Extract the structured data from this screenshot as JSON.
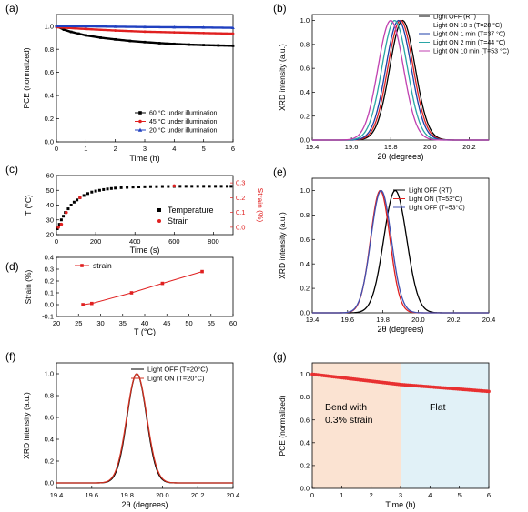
{
  "chart_data": [
    {
      "id": "a",
      "type": "line",
      "panel_label": "(a)",
      "xlabel": "Time (h)",
      "ylabel": "PCE (normalized)",
      "xlim": [
        0,
        6
      ],
      "ylim": [
        0,
        1.1
      ],
      "xticks": [
        "0",
        "1",
        "2",
        "3",
        "4",
        "5",
        "6"
      ],
      "xtick_values": [
        0,
        1,
        2,
        3,
        4,
        5,
        6
      ],
      "yticks": [
        "0.0",
        "0.2",
        "0.4",
        "0.6",
        "0.8",
        "1.0"
      ],
      "ytick_values": [
        0,
        0.2,
        0.4,
        0.6,
        0.8,
        1.0
      ],
      "legend_position": "bottom-right",
      "series": [
        {
          "name": "60 °C under illumination",
          "color": "#000000",
          "marker": "square",
          "x": [
            0,
            0.25,
            0.5,
            0.75,
            1,
            1.5,
            2,
            2.5,
            3,
            3.5,
            4,
            4.5,
            5,
            5.5,
            6
          ],
          "y": [
            1.0,
            0.97,
            0.95,
            0.935,
            0.92,
            0.9,
            0.885,
            0.872,
            0.862,
            0.853,
            0.846,
            0.84,
            0.836,
            0.833,
            0.83
          ]
        },
        {
          "name": "45 °C under illumination",
          "color": "#e02020",
          "marker": "circle",
          "x": [
            0,
            1,
            2,
            3,
            4,
            5,
            6
          ],
          "y": [
            0.99,
            0.975,
            0.962,
            0.952,
            0.946,
            0.94,
            0.935
          ]
        },
        {
          "name": "20 °C under illumination",
          "color": "#2040c0",
          "marker": "triangle",
          "x": [
            0,
            1,
            2,
            3,
            4,
            5,
            6
          ],
          "y": [
            1.0,
            0.998,
            0.995,
            0.992,
            0.99,
            0.988,
            0.985
          ]
        }
      ]
    },
    {
      "id": "b",
      "type": "line",
      "panel_label": "(b)",
      "xlabel": "2θ (degrees)",
      "ylabel": "XRD intensity (a.u.)",
      "xlim": [
        19.4,
        20.3
      ],
      "ylim": [
        0,
        1.05
      ],
      "xticks": [
        "19.4",
        "19.6",
        "19.8",
        "20.0",
        "20.2"
      ],
      "xtick_values": [
        19.4,
        19.6,
        19.8,
        20.0,
        20.2
      ],
      "yticks": [
        "0.0",
        "0.2",
        "0.4",
        "0.6",
        "0.8",
        "1.0"
      ],
      "ytick_values": [
        0,
        0.2,
        0.4,
        0.6,
        0.8,
        1.0
      ],
      "legend_position": "top-right",
      "series": [
        {
          "name": "Light OFF (RT)",
          "color": "#000000",
          "center": 19.86,
          "width": 0.065
        },
        {
          "name": "Light ON 10 s (T=28 °C)",
          "color": "#e02020",
          "center": 19.85,
          "width": 0.065
        },
        {
          "name": "Light ON 1 min (T=37 °C)",
          "color": "#1c3fa8",
          "center": 19.84,
          "width": 0.065
        },
        {
          "name": "Light ON 2 min (T=44 °C)",
          "color": "#2aa6a6",
          "center": 19.82,
          "width": 0.065
        },
        {
          "name": "Light ON 10 min (T=53 °C)",
          "color": "#c040b0",
          "center": 19.8,
          "width": 0.065
        }
      ]
    },
    {
      "id": "c",
      "type": "scatter",
      "panel_label": "(c)",
      "xlabel": "Time (s)",
      "ylabel": "T (°C)",
      "ylabel_right": "Strain (%)",
      "xlim": [
        0,
        900
      ],
      "ylim": [
        20,
        60
      ],
      "ylim_right": [
        -0.05,
        0.35
      ],
      "xticks": [
        "0",
        "200",
        "400",
        "600",
        "800"
      ],
      "xtick_values": [
        0,
        200,
        400,
        600,
        800
      ],
      "yticks": [
        "20",
        "30",
        "40",
        "50",
        "60"
      ],
      "ytick_values": [
        20,
        30,
        40,
        50,
        60
      ],
      "yticks_right": [
        "0.0",
        "0.1",
        "0.2",
        "0.3"
      ],
      "ytick_values_right": [
        0,
        0.1,
        0.2,
        0.3
      ],
      "legend_position": "right",
      "series": [
        {
          "name": "Temperature",
          "color": "#000000",
          "marker": "square",
          "x": [
            5,
            15,
            25,
            35,
            45,
            60,
            75,
            90,
            105,
            120,
            140,
            160,
            180,
            200,
            220,
            240,
            260,
            280,
            300,
            330,
            360,
            390,
            420,
            450,
            480,
            510,
            540,
            570,
            600,
            630,
            660,
            690,
            720,
            750,
            780,
            810,
            840,
            870,
            890
          ],
          "y": [
            24,
            27,
            30,
            32.5,
            35,
            37.5,
            40,
            42,
            43.5,
            45,
            46.5,
            47.8,
            48.8,
            49.5,
            50,
            50.5,
            50.9,
            51.2,
            51.5,
            51.8,
            52,
            52.2,
            52.3,
            52.4,
            52.5,
            52.5,
            52.6,
            52.6,
            52.6,
            52.7,
            52.7,
            52.7,
            52.7,
            52.7,
            52.7,
            52.7,
            52.7,
            52.7,
            52.7
          ]
        },
        {
          "name": "Strain",
          "color": "#e02020",
          "marker": "circle",
          "x": [
            10,
            25,
            50,
            120,
            600
          ],
          "y": [
            0,
            0.02,
            0.1,
            0.2,
            0.28
          ]
        }
      ]
    },
    {
      "id": "d",
      "type": "line",
      "panel_label": "(d)",
      "xlabel": "T (°C)",
      "ylabel": "Strain (%)",
      "xlim": [
        20,
        60
      ],
      "ylim": [
        -0.1,
        0.4
      ],
      "xticks": [
        "20",
        "25",
        "30",
        "35",
        "40",
        "45",
        "50",
        "55",
        "60"
      ],
      "xtick_values": [
        20,
        25,
        30,
        35,
        40,
        45,
        50,
        55,
        60
      ],
      "yticks": [
        "-0.1",
        "0.0",
        "0.1",
        "0.2",
        "0.3",
        "0.4"
      ],
      "ytick_values": [
        -0.1,
        0,
        0.1,
        0.2,
        0.3,
        0.4
      ],
      "legend_position": "top-left",
      "series": [
        {
          "name": "strain",
          "color": "#e02020",
          "marker": "square",
          "x": [
            26,
            28,
            37,
            44,
            53
          ],
          "y": [
            0,
            0.01,
            0.1,
            0.18,
            0.28
          ]
        }
      ]
    },
    {
      "id": "e",
      "type": "line",
      "panel_label": "(e)",
      "xlabel": "2θ (degrees)",
      "ylabel": "XRD intensity (a.u.)",
      "xlim": [
        19.4,
        20.4
      ],
      "ylim": [
        0,
        1.1
      ],
      "xticks": [
        "19.4",
        "19.6",
        "19.8",
        "20.0",
        "20.2",
        "20.4"
      ],
      "xtick_values": [
        19.4,
        19.6,
        19.8,
        20.0,
        20.2,
        20.4
      ],
      "yticks": [
        "0.0",
        "0.2",
        "0.4",
        "0.6",
        "0.8",
        "1.0"
      ],
      "ytick_values": [
        0,
        0.2,
        0.4,
        0.6,
        0.8,
        1.0
      ],
      "legend_position": "top-right",
      "series": [
        {
          "name": "Light OFF (RT)",
          "color": "#000000",
          "center": 19.87,
          "width": 0.065
        },
        {
          "name": "Light ON (T=53°C)",
          "color": "#e02020",
          "center": 19.785,
          "width": 0.055
        },
        {
          "name": "Light OFF (T=53°C)",
          "color": "#4050b0",
          "center": 19.79,
          "width": 0.058
        }
      ]
    },
    {
      "id": "f",
      "type": "line",
      "panel_label": "(f)",
      "xlabel": "2θ (degrees)",
      "ylabel": "XRD intensity (a.u.)",
      "xlim": [
        19.4,
        20.4
      ],
      "ylim": [
        -0.05,
        1.1
      ],
      "xticks": [
        "19.4",
        "19.6",
        "19.8",
        "20.0",
        "20.2",
        "20.4"
      ],
      "xtick_values": [
        19.4,
        19.6,
        19.8,
        20.0,
        20.2,
        20.4
      ],
      "yticks": [
        "0.0",
        "0.2",
        "0.4",
        "0.6",
        "0.8",
        "1.0"
      ],
      "ytick_values": [
        0,
        0.2,
        0.4,
        0.6,
        0.8,
        1.0
      ],
      "legend_position": "top-right",
      "series": [
        {
          "name": "Light OFF (T=20°C)",
          "color": "#000000",
          "center": 19.855,
          "width": 0.055
        },
        {
          "name": "Light ON (T=20°C)",
          "color": "#d03020",
          "center": 19.855,
          "width": 0.057
        }
      ]
    },
    {
      "id": "g",
      "type": "line",
      "panel_label": "(g)",
      "xlabel": "Time (h)",
      "ylabel": "PCE (normalized)",
      "xlim": [
        0,
        6
      ],
      "ylim": [
        0,
        1.1
      ],
      "xticks": [
        "0",
        "1",
        "2",
        "3",
        "4",
        "5",
        "6"
      ],
      "xtick_values": [
        0,
        1,
        2,
        3,
        4,
        5,
        6
      ],
      "yticks": [
        "0.0",
        "0.2",
        "0.4",
        "0.6",
        "0.8",
        "1.0"
      ],
      "ytick_values": [
        0,
        0.2,
        0.4,
        0.6,
        0.8,
        1.0
      ],
      "regions": [
        {
          "label": "Bend with\n0.3% strain",
          "x0": 0,
          "x1": 3,
          "color": "#fbe3d2"
        },
        {
          "label": "Flat",
          "x0": 3,
          "x1": 6,
          "color": "#e1f1f7"
        }
      ],
      "series": [
        {
          "name": "PCE",
          "color": "#e83030",
          "marker": "circle",
          "x": [
            0,
            0.5,
            1,
            1.5,
            2,
            2.5,
            3,
            3.5,
            4,
            4.5,
            5,
            5.5,
            6
          ],
          "y": [
            1.0,
            0.985,
            0.97,
            0.955,
            0.94,
            0.925,
            0.91,
            0.9,
            0.89,
            0.88,
            0.87,
            0.86,
            0.85
          ]
        }
      ]
    }
  ]
}
